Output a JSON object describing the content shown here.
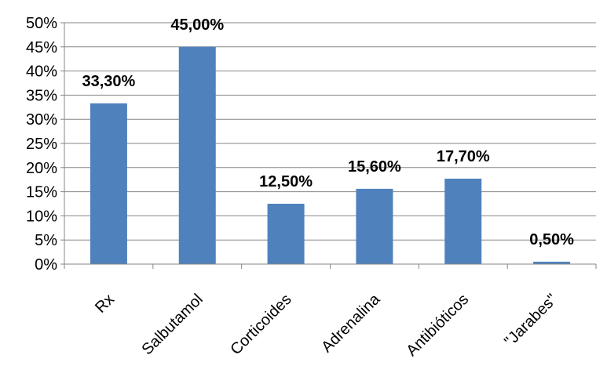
{
  "chart_data": {
    "type": "bar",
    "categories": [
      "Rx",
      "Salbutamol",
      "Corticoides",
      "Adrenalina",
      "Antibióticos",
      "\"Jarabes\""
    ],
    "values": [
      33.3,
      45.0,
      12.5,
      15.6,
      17.7,
      0.5
    ],
    "data_labels": [
      "33,30%",
      "45,00%",
      "12,50%",
      "15,60%",
      "17,70%",
      "0,50%"
    ],
    "ylim": [
      0,
      50
    ],
    "ytick_values": [
      0,
      5,
      10,
      15,
      20,
      25,
      30,
      35,
      40,
      45,
      50
    ],
    "ytick_labels": [
      "0%",
      "5%",
      "10%",
      "15%",
      "20%",
      "25%",
      "30%",
      "35%",
      "40%",
      "45%",
      "50%"
    ],
    "title": "",
    "xlabel": "",
    "ylabel": "",
    "grid": true,
    "bar_color": "#4f81bd",
    "grid_color": "#868686",
    "legend": "none"
  }
}
